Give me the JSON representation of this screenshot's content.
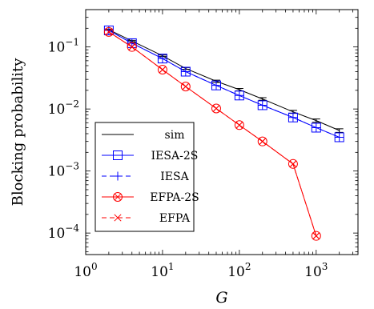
{
  "chart_data": {
    "type": "line",
    "title": "",
    "xlabel": "G",
    "ylabel": "Blocking probability",
    "xscale": "log",
    "yscale": "log",
    "xlim": [
      1,
      3500
    ],
    "ylim": [
      4.5e-05,
      0.4
    ],
    "x_ticks": [
      {
        "value": 1,
        "base": "10",
        "exp": "0"
      },
      {
        "value": 10,
        "base": "10",
        "exp": "1"
      },
      {
        "value": 100,
        "base": "10",
        "exp": "2"
      },
      {
        "value": 1000,
        "base": "10",
        "exp": "3"
      }
    ],
    "y_ticks": [
      {
        "value": 0.0001,
        "base": "10",
        "exp": "−4"
      },
      {
        "value": 0.001,
        "base": "10",
        "exp": "−3"
      },
      {
        "value": 0.01,
        "base": "10",
        "exp": "−2"
      },
      {
        "value": 0.1,
        "base": "10",
        "exp": "−1"
      }
    ],
    "legend_position": "bottom-left",
    "series": [
      {
        "name": "sim",
        "color": "#000000",
        "marker": "none",
        "dash": "solid",
        "x": [
          2,
          4,
          10,
          20,
          50,
          100,
          200,
          500,
          1000,
          2000
        ],
        "y": [
          0.19,
          0.125,
          0.072,
          0.045,
          0.028,
          0.0205,
          0.0145,
          0.009,
          0.0065,
          0.0045
        ],
        "err": [
          0.004,
          0.003,
          0.002,
          0.0015,
          0.0012,
          0.0009,
          0.0007,
          0.0005,
          0.0004,
          0.0003
        ]
      },
      {
        "name": "IESA-2S",
        "color": "#0000ff",
        "marker": "square",
        "dash": "solid",
        "x": [
          2,
          4,
          10,
          20,
          50,
          100,
          200,
          500,
          1000,
          2000
        ],
        "y": [
          0.185,
          0.115,
          0.065,
          0.04,
          0.024,
          0.0165,
          0.0115,
          0.0073,
          0.005,
          0.0035
        ]
      },
      {
        "name": "IESA",
        "color": "#0000ff",
        "marker": "plus",
        "dash": "dashed",
        "x": [
          2,
          4,
          10,
          20,
          50,
          100,
          200,
          500,
          1000,
          2000
        ],
        "y": [
          0.185,
          0.115,
          0.065,
          0.04,
          0.024,
          0.0165,
          0.0115,
          0.0073,
          0.005,
          0.0035
        ]
      },
      {
        "name": "EFPA-2S",
        "color": "#ff0000",
        "marker": "circle-x",
        "dash": "solid",
        "x": [
          2,
          4,
          10,
          20,
          50,
          100,
          200,
          500,
          1000
        ],
        "y": [
          0.175,
          0.1,
          0.043,
          0.023,
          0.0102,
          0.0055,
          0.003,
          0.0013,
          9e-05
        ]
      },
      {
        "name": "EFPA",
        "color": "#ff0000",
        "marker": "cross",
        "dash": "dashed",
        "x": [
          2,
          4,
          10,
          20,
          50,
          100,
          200,
          500,
          1000
        ],
        "y": [
          0.175,
          0.1,
          0.043,
          0.023,
          0.0102,
          0.0055,
          0.003,
          0.0013,
          9e-05
        ]
      }
    ]
  }
}
